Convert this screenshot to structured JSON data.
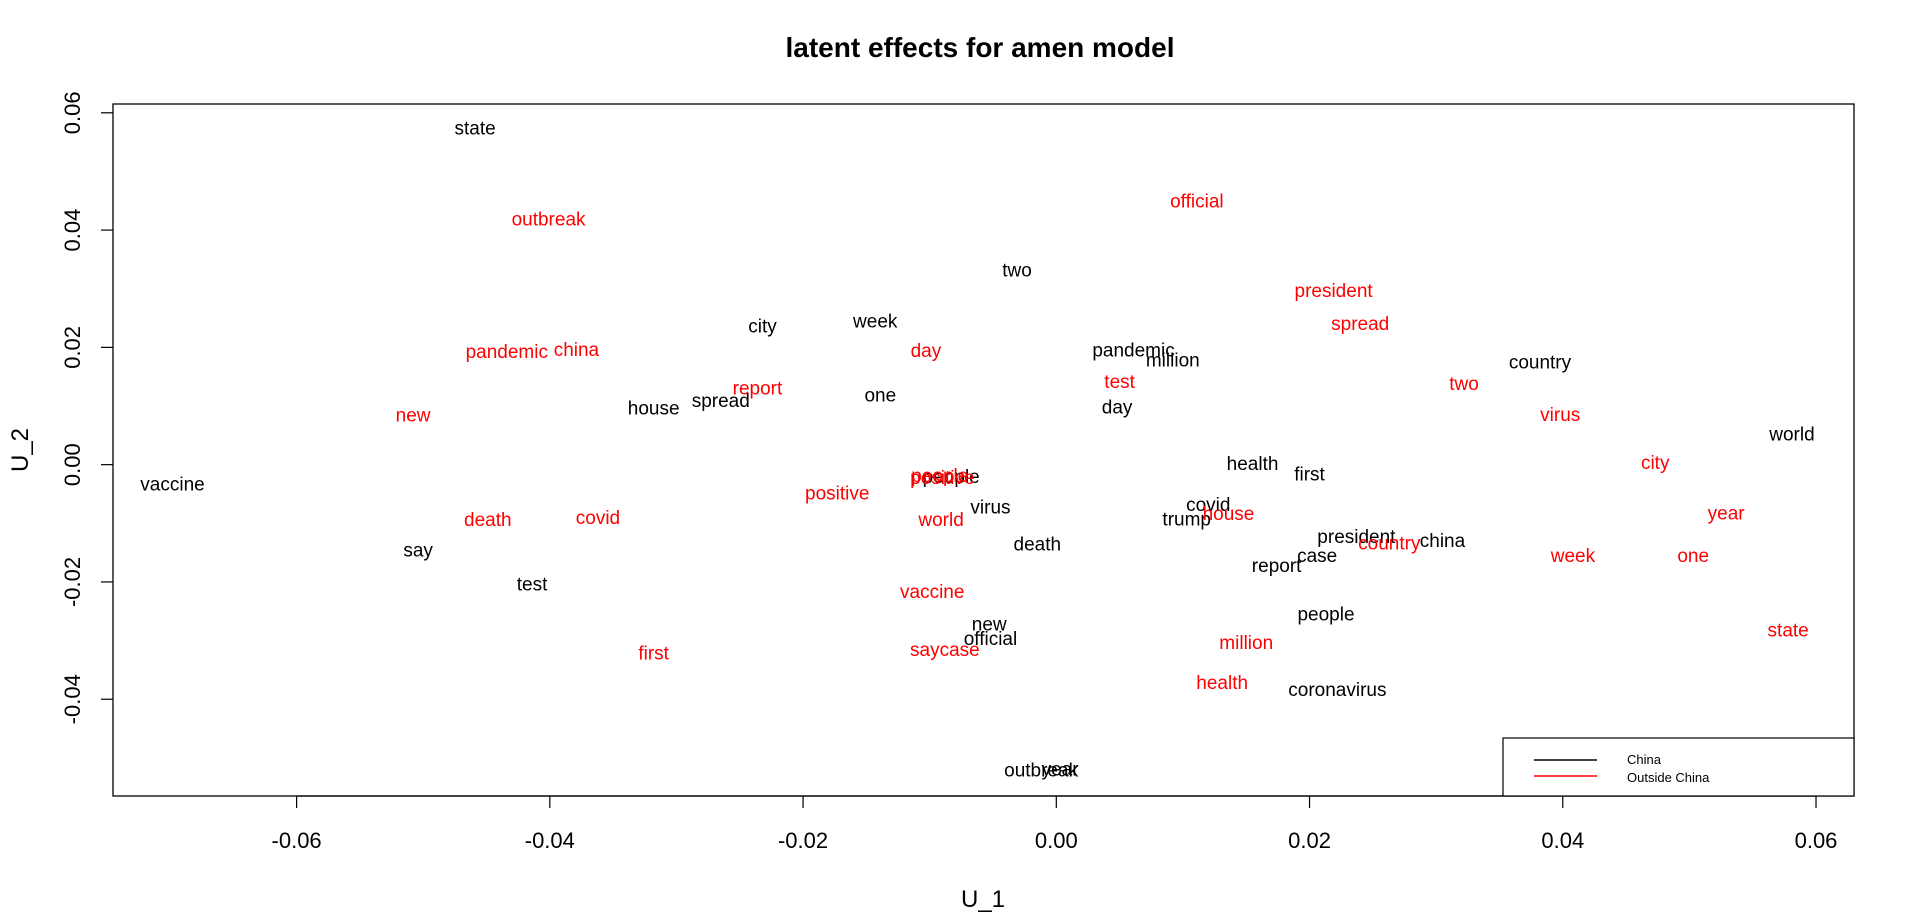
{
  "chart_data": {
    "type": "scatter",
    "title": "latent effects for amen model",
    "xlabel": "U_1",
    "ylabel": "U_2",
    "xlim": [
      -0.0745,
      0.063
    ],
    "ylim": [
      -0.0565,
      0.0615
    ],
    "xticks": [
      {
        "value": -0.06,
        "label": "-0.06"
      },
      {
        "value": -0.04,
        "label": "-0.04"
      },
      {
        "value": -0.02,
        "label": "-0.02"
      },
      {
        "value": 0.0,
        "label": "0.00"
      },
      {
        "value": 0.02,
        "label": "0.02"
      },
      {
        "value": 0.04,
        "label": "0.04"
      },
      {
        "value": 0.06,
        "label": "0.06"
      }
    ],
    "yticks": [
      {
        "value": -0.04,
        "label": "-0.04"
      },
      {
        "value": -0.02,
        "label": "-0.02"
      },
      {
        "value": 0.0,
        "label": "0.00"
      },
      {
        "value": 0.02,
        "label": "0.02"
      },
      {
        "value": 0.04,
        "label": "0.04"
      },
      {
        "value": 0.06,
        "label": "0.06"
      }
    ],
    "legend": {
      "position": "bottom-right",
      "entries": [
        {
          "label": "China",
          "color": "#000000"
        },
        {
          "label": "Outside China",
          "color": "#ff0000"
        }
      ]
    },
    "series": [
      {
        "name": "China",
        "color": "#000000",
        "points": [
          {
            "label": "state",
            "x": -0.0459,
            "y": 0.0572
          },
          {
            "label": "two",
            "x": -0.0031,
            "y": 0.033
          },
          {
            "label": "city",
            "x": -0.0232,
            "y": 0.0235
          },
          {
            "label": "week",
            "x": -0.0143,
            "y": 0.0243
          },
          {
            "label": "pandemic",
            "x": 0.0061,
            "y": 0.0194
          },
          {
            "label": "million",
            "x": 0.0092,
            "y": 0.0177
          },
          {
            "label": "country",
            "x": 0.0382,
            "y": 0.0173
          },
          {
            "label": "one",
            "x": -0.0139,
            "y": 0.0117
          },
          {
            "label": "house",
            "x": -0.0318,
            "y": 0.0095
          },
          {
            "label": "spread",
            "x": -0.0265,
            "y": 0.0108
          },
          {
            "label": "day",
            "x": 0.0048,
            "y": 0.0097
          },
          {
            "label": "world",
            "x": 0.0581,
            "y": 0.0051
          },
          {
            "label": "health",
            "x": 0.0155,
            "y": 0.0
          },
          {
            "label": "first",
            "x": 0.02,
            "y": -0.0018
          },
          {
            "label": "vaccine",
            "x": -0.0698,
            "y": -0.0035
          },
          {
            "label": "people",
            "x": -0.0083,
            "y": -0.0022
          },
          {
            "label": "virus",
            "x": -0.0052,
            "y": -0.0074
          },
          {
            "label": "covid",
            "x": 0.012,
            "y": -0.007
          },
          {
            "label": "trump",
            "x": 0.0103,
            "y": -0.0094
          },
          {
            "label": "death",
            "x": -0.0015,
            "y": -0.0137
          },
          {
            "label": "president",
            "x": 0.0237,
            "y": -0.0124
          },
          {
            "label": "china",
            "x": 0.0305,
            "y": -0.0131
          },
          {
            "label": "say",
            "x": -0.0504,
            "y": -0.0147
          },
          {
            "label": "case",
            "x": 0.0206,
            "y": -0.0157
          },
          {
            "label": "report",
            "x": 0.0174,
            "y": -0.0174
          },
          {
            "label": "test",
            "x": -0.0414,
            "y": -0.0205
          },
          {
            "label": "people",
            "x": 0.0213,
            "y": -0.0256
          },
          {
            "label": "new",
            "x": -0.0053,
            "y": -0.0273
          },
          {
            "label": "official",
            "x": -0.0052,
            "y": -0.0298
          },
          {
            "label": "coronavirus",
            "x": 0.0222,
            "y": -0.0385
          },
          {
            "label": "outbreak",
            "x": -0.0012,
            "y": -0.0522
          },
          {
            "label": "year",
            "x": 0.0003,
            "y": -0.0521
          }
        ]
      },
      {
        "name": "Outside China",
        "color": "#ff0000",
        "points": [
          {
            "label": "official",
            "x": 0.0111,
            "y": 0.0448
          },
          {
            "label": "outbreak",
            "x": -0.0401,
            "y": 0.0417
          },
          {
            "label": "president",
            "x": 0.0219,
            "y": 0.0295
          },
          {
            "label": "spread",
            "x": 0.024,
            "y": 0.0239
          },
          {
            "label": "pandemic",
            "x": -0.0434,
            "y": 0.0191
          },
          {
            "label": "china",
            "x": -0.0379,
            "y": 0.0195
          },
          {
            "label": "day",
            "x": -0.0103,
            "y": 0.0193
          },
          {
            "label": "test",
            "x": 0.005,
            "y": 0.014
          },
          {
            "label": "two",
            "x": 0.0322,
            "y": 0.0137
          },
          {
            "label": "report",
            "x": -0.0236,
            "y": 0.0129
          },
          {
            "label": "new",
            "x": -0.0508,
            "y": 0.0083
          },
          {
            "label": "virus",
            "x": 0.0398,
            "y": 0.0084
          },
          {
            "label": "city",
            "x": 0.0473,
            "y": 0.0002
          },
          {
            "label": "people",
            "x": -0.0092,
            "y": -0.002
          },
          {
            "label": "positive",
            "x": -0.009,
            "y": -0.0024
          },
          {
            "label": "positive",
            "x": -0.0173,
            "y": -0.005
          },
          {
            "label": "year",
            "x": 0.0529,
            "y": -0.0084
          },
          {
            "label": "house",
            "x": 0.0136,
            "y": -0.0085
          },
          {
            "label": "death",
            "x": -0.0449,
            "y": -0.0095
          },
          {
            "label": "covid",
            "x": -0.0362,
            "y": -0.0092
          },
          {
            "label": "world",
            "x": -0.0091,
            "y": -0.0095
          },
          {
            "label": "country",
            "x": 0.0263,
            "y": -0.0135
          },
          {
            "label": "week",
            "x": 0.0408,
            "y": -0.0157
          },
          {
            "label": "one",
            "x": 0.0503,
            "y": -0.0157
          },
          {
            "label": "vaccine",
            "x": -0.0098,
            "y": -0.0218
          },
          {
            "label": "state",
            "x": 0.0578,
            "y": -0.0284
          },
          {
            "label": "million",
            "x": 0.015,
            "y": -0.0305
          },
          {
            "label": "first",
            "x": -0.0318,
            "y": -0.0323
          },
          {
            "label": "saycase",
            "x": -0.0088,
            "y": -0.0317
          },
          {
            "label": "health",
            "x": 0.0131,
            "y": -0.0373
          }
        ]
      }
    ]
  }
}
